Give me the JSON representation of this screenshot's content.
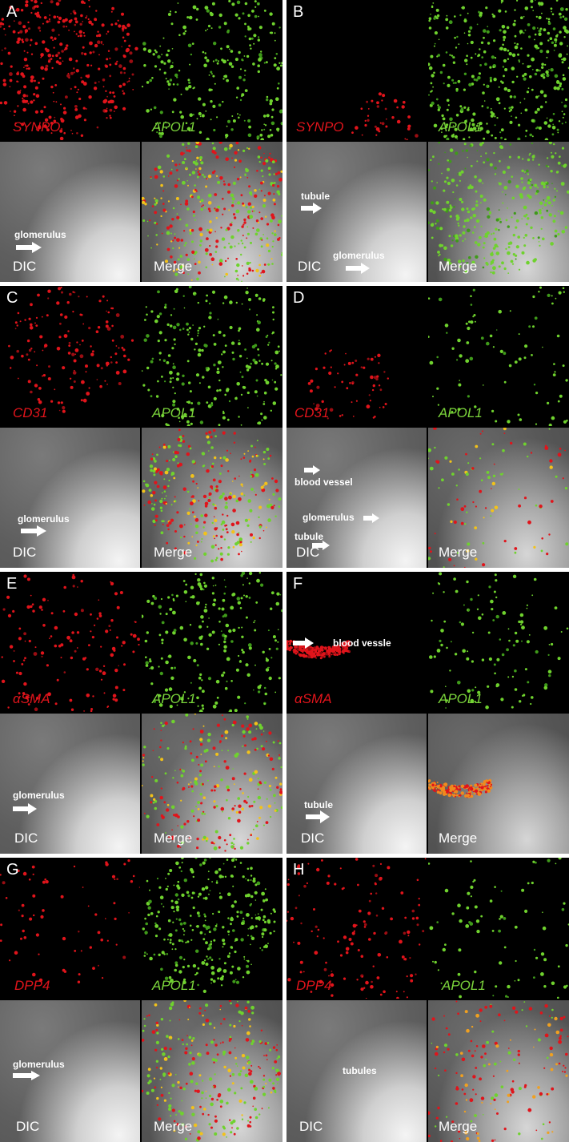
{
  "panels": [
    {
      "letter": "A",
      "red": "SYNPO",
      "green": "APOL1",
      "dic": "DIC",
      "merge": "Merge",
      "annotations": [
        "glomerulus"
      ]
    },
    {
      "letter": "B",
      "red": "SYNPO",
      "green": "APOL1",
      "dic": "DIC",
      "merge": "Merge",
      "annotations": [
        "tubule",
        "glomerulus"
      ]
    },
    {
      "letter": "C",
      "red": "CD31",
      "green": "APOL1",
      "dic": "DIC",
      "merge": "Merge",
      "annotations": [
        "glomerulus"
      ]
    },
    {
      "letter": "D",
      "red": "CD31",
      "green": "APOL1",
      "dic": "DIC",
      "merge": "Merge",
      "annotations": [
        "blood vessel",
        "glomerulus",
        "tubule"
      ]
    },
    {
      "letter": "E",
      "red": "αSMA",
      "green": "APOL1",
      "dic": "DIC",
      "merge": "Merge",
      "annotations": [
        "glomerulus"
      ]
    },
    {
      "letter": "F",
      "red": "αSMA",
      "green": "APOL1",
      "dic": "DIC",
      "merge": "Merge",
      "annotations": [
        "blood vessle",
        "tubule"
      ]
    },
    {
      "letter": "G",
      "red": "DPP4",
      "green": "APOL1",
      "dic": "DIC",
      "merge": "Merge",
      "annotations": [
        "glomerulus"
      ]
    },
    {
      "letter": "H",
      "red": "DPP4",
      "green": "APOL1",
      "dic": "DIC",
      "merge": "Merge",
      "annotations": [
        "tubules"
      ]
    }
  ],
  "colors": {
    "red": "#e0141b",
    "green": "#7bd53b",
    "white": "#ffffff",
    "black": "#000000"
  }
}
